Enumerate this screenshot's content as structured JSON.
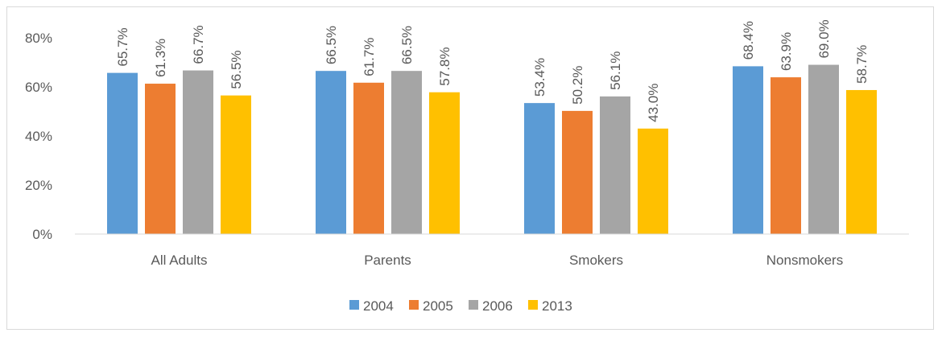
{
  "chart_data": {
    "type": "bar",
    "title": "",
    "xlabel": "",
    "ylabel": "",
    "categories": [
      "All Adults",
      "Parents",
      "Smokers",
      "Nonsmokers"
    ],
    "series": [
      {
        "name": "2004",
        "color": "#5b9bd5",
        "values": [
          65.7,
          66.5,
          53.4,
          68.4
        ],
        "labels": [
          "65.7%",
          "66.5%",
          "53.4%",
          "68.4%"
        ]
      },
      {
        "name": "2005",
        "color": "#ed7d31",
        "values": [
          61.3,
          61.7,
          50.2,
          63.9
        ],
        "labels": [
          "61.3%",
          "61.7%",
          "50.2%",
          "63.9%"
        ]
      },
      {
        "name": "2006",
        "color": "#a5a5a5",
        "values": [
          66.7,
          66.5,
          56.1,
          69.0
        ],
        "labels": [
          "66.7%",
          "66.5%",
          "56.1%",
          "69.0%"
        ]
      },
      {
        "name": "2013",
        "color": "#ffc000",
        "values": [
          56.5,
          57.8,
          43.0,
          58.7
        ],
        "labels": [
          "56.5%",
          "57.8%",
          "43.0%",
          "58.7%"
        ]
      }
    ],
    "ylim": [
      0,
      80
    ],
    "yticks": [
      0,
      20,
      40,
      60,
      80
    ],
    "ytick_labels": [
      "0%",
      "20%",
      "40%",
      "60%",
      "80%"
    ],
    "grid": false,
    "legend_position": "bottom",
    "data_label_rotation": "vertical"
  }
}
